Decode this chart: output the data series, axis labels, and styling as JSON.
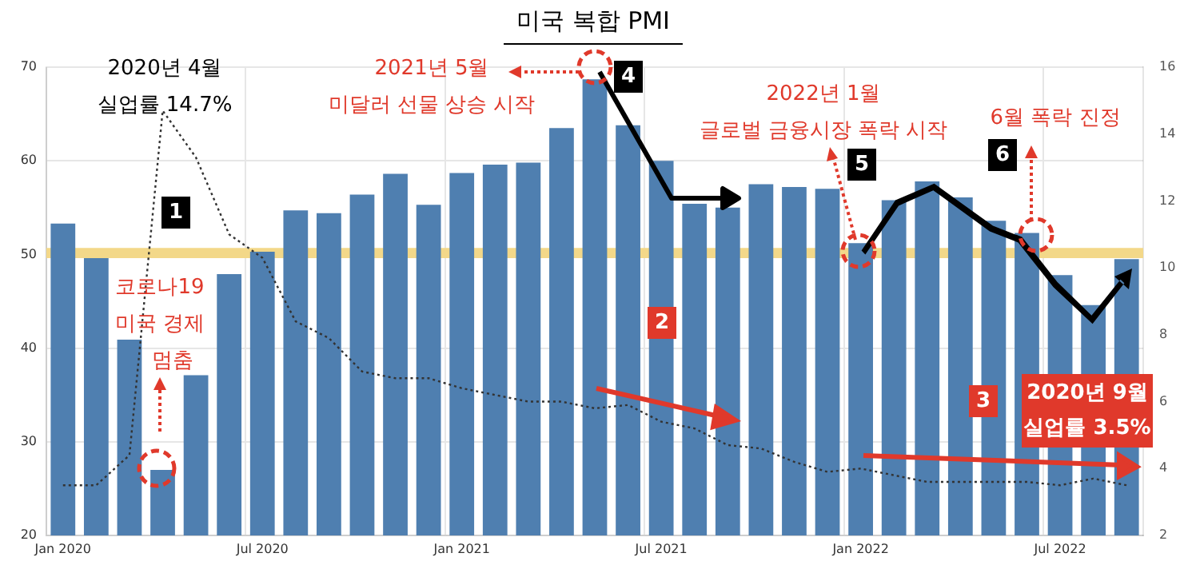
{
  "chart_data": {
    "type": "bar",
    "title": "미국 복합 PMI",
    "categories": [
      "Jan 2020",
      null,
      null,
      null,
      null,
      null,
      "Jul 2020",
      null,
      null,
      null,
      null,
      null,
      "Jan 2021",
      null,
      null,
      null,
      null,
      null,
      "Jul 2021",
      null,
      null,
      null,
      null,
      null,
      "Jan 2022",
      null,
      null,
      null,
      null,
      null,
      "Jul 2022",
      null,
      null
    ],
    "series": [
      {
        "color": "#4f7fb0",
        "values": [
          53.3,
          49.6,
          40.9,
          27.0,
          37.1,
          47.9,
          50.3,
          54.7,
          54.4,
          56.4,
          58.6,
          55.3,
          58.7,
          59.6,
          59.8,
          63.5,
          68.7,
          63.8,
          60.0,
          55.4,
          55.0,
          57.5,
          57.2,
          57.0,
          51.2,
          55.8,
          57.8,
          56.1,
          53.6,
          52.3,
          47.8,
          44.6,
          49.5
        ]
      },
      {
        "type": "line",
        "axis": "y2",
        "color": "#333333",
        "line_style": "dotted",
        "marker": "none",
        "values": [
          3.5,
          3.5,
          4.4,
          14.7,
          13.3,
          11.0,
          10.3,
          8.4,
          7.9,
          6.9,
          6.7,
          6.7,
          6.4,
          6.2,
          6.0,
          6.0,
          5.8,
          5.9,
          5.4,
          5.2,
          4.7,
          4.6,
          4.2,
          3.9,
          4.0,
          3.8,
          3.6,
          3.6,
          3.6,
          3.6,
          3.5,
          3.7,
          3.5
        ]
      }
    ],
    "ylim": [
      20,
      70
    ],
    "yticks": [
      20,
      30,
      40,
      50,
      60,
      70
    ],
    "y2lim": [
      2,
      16
    ],
    "y2ticks": [
      2,
      4,
      6,
      8,
      10,
      12,
      14,
      16
    ],
    "grid": true,
    "legend": false,
    "bands": [
      {
        "axis": "y",
        "from": 49.6,
        "to": 50.7,
        "color": "#f3d889"
      }
    ],
    "annotations": [
      "2020년 4월",
      "실업률 14.7%",
      "2021년 5월",
      "미달러 선물 상승 시작",
      "코로나19",
      "미국 경제",
      "멈춤",
      "2022년 1월",
      "글로벌 금융시장 폭락 시작",
      "6월 폭락 진정",
      "2020년 9월",
      "실업률 3.5%",
      "1",
      "2",
      "3",
      "4",
      "5",
      "6"
    ]
  }
}
